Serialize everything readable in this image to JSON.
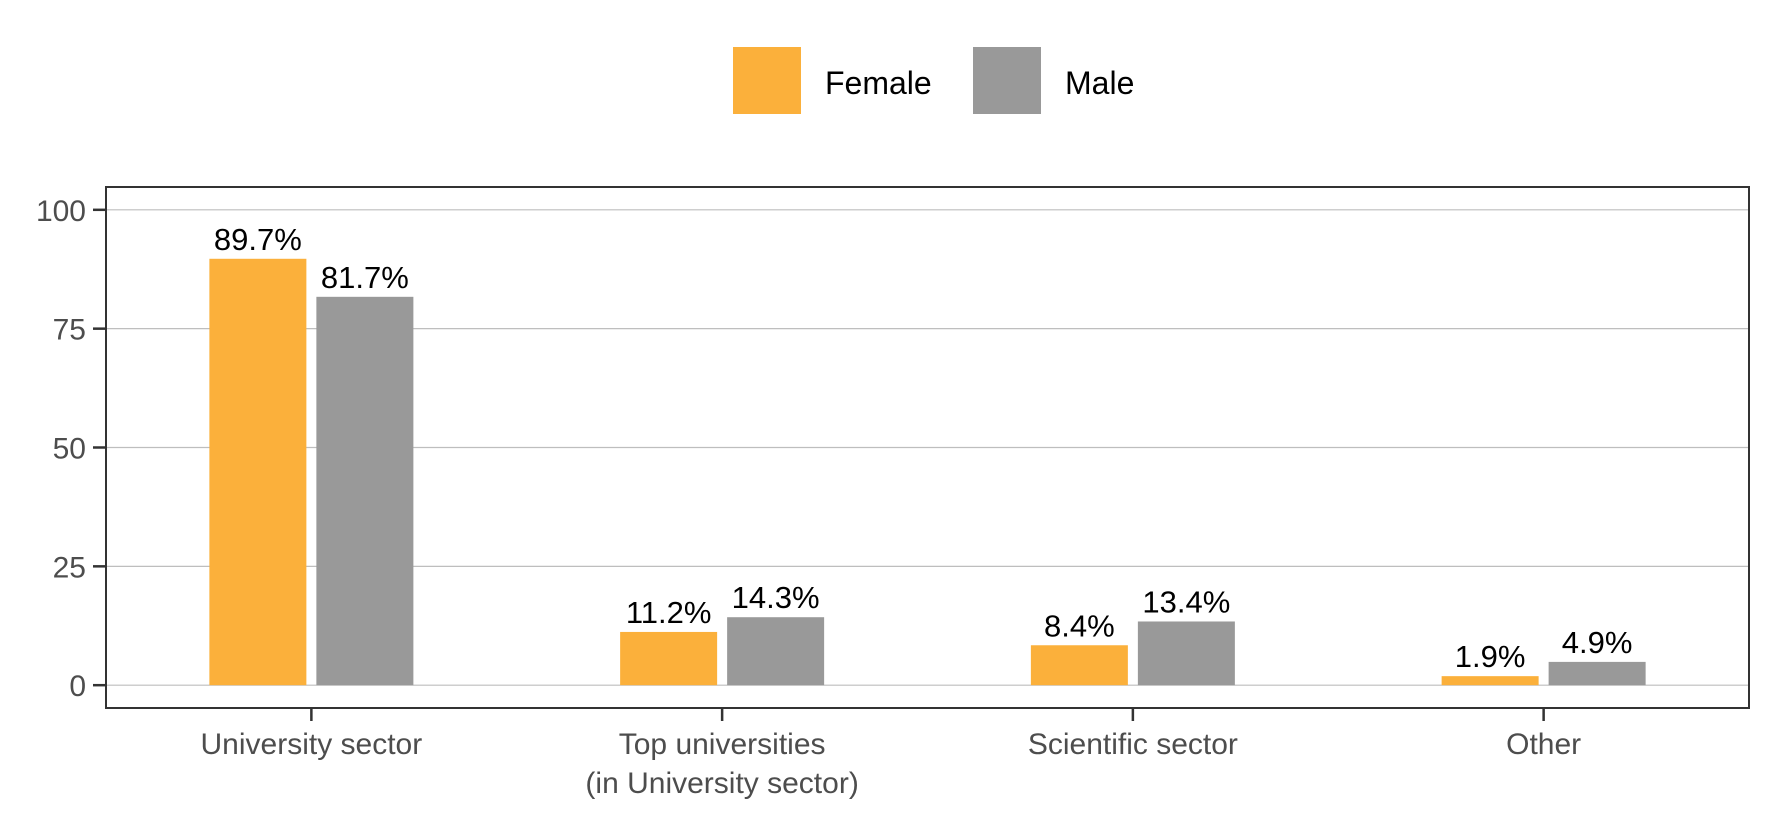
{
  "colors": {
    "female": "#FBB03B",
    "male": "#999999",
    "grid": "#BEBEBE",
    "axis": "#333333",
    "panel_border": "#333333"
  },
  "chart_data": {
    "type": "bar",
    "categories": [
      [
        "University sector"
      ],
      [
        "Top universities",
        "(in University sector)"
      ],
      [
        "Scientific sector"
      ],
      [
        "Other"
      ]
    ],
    "series": [
      {
        "name": "Female",
        "values": [
          89.7,
          11.2,
          8.4,
          1.9
        ],
        "labels": [
          "89.7%",
          "11.2%",
          "8.4%",
          "1.9%"
        ]
      },
      {
        "name": "Male",
        "values": [
          81.7,
          14.3,
          13.4,
          4.9
        ],
        "labels": [
          "81.7%",
          "14.3%",
          "13.4%",
          "4.9%"
        ]
      }
    ],
    "y_ticks": [
      0,
      25,
      50,
      75,
      100
    ],
    "ylim": [
      -4.8,
      104.8
    ],
    "title": "",
    "xlabel": "",
    "ylabel": "",
    "grid": true,
    "legend_position": "top"
  }
}
